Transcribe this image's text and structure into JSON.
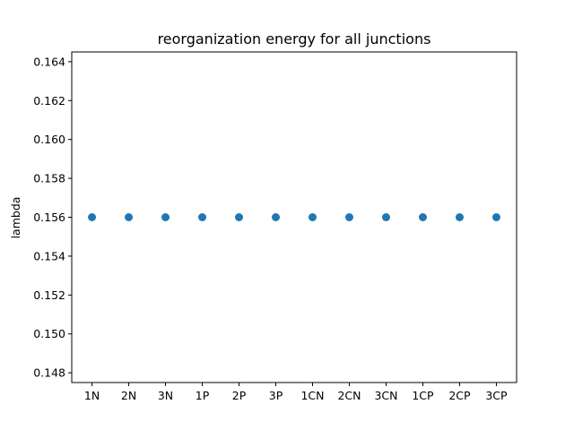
{
  "chart_data": {
    "type": "scatter",
    "title": "reorganization energy for all junctions",
    "xlabel": "",
    "ylabel": "lambda",
    "categories": [
      "1N",
      "2N",
      "3N",
      "1P",
      "2P",
      "3P",
      "1CN",
      "2CN",
      "3CN",
      "1CP",
      "2CP",
      "3CP"
    ],
    "series": [
      {
        "values": [
          0.156,
          0.156,
          0.156,
          0.156,
          0.156,
          0.156,
          0.156,
          0.156,
          0.156,
          0.156,
          0.156,
          0.156
        ],
        "color": "#1f77b4"
      }
    ],
    "ylim": [
      0.1475,
      0.1645
    ],
    "yticks": [
      0.148,
      0.15,
      0.152,
      0.154,
      0.156,
      0.158,
      0.16,
      0.162,
      0.164
    ],
    "ytick_labels": [
      "0.148",
      "0.150",
      "0.152",
      "0.154",
      "0.156",
      "0.158",
      "0.160",
      "0.162",
      "0.164"
    ],
    "grid": false,
    "legend": "none"
  }
}
